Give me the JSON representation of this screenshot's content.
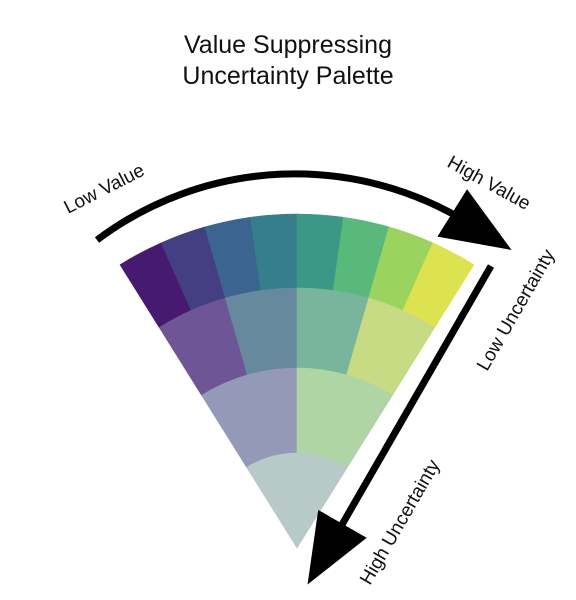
{
  "title": {
    "line1": "Value Suppressing",
    "line2": "Uncertainty Palette"
  },
  "labels": {
    "low_value": "Low Value",
    "high_value": "High Value",
    "low_uncertainty": "Low Uncertainty",
    "high_uncertainty": "High Uncertainty"
  },
  "palette": {
    "rows": [
      [
        "#461a6e",
        "#433f82",
        "#3b6590",
        "#357f8d",
        "#3b9886",
        "#59b97b",
        "#9bd35f",
        "#dde34e"
      ],
      [
        "#6e5596",
        "#66899e",
        "#79b59c",
        "#c6db83"
      ],
      [
        "#9499b8",
        "#afd5a4"
      ],
      [
        "#b8cac7"
      ]
    ]
  }
}
